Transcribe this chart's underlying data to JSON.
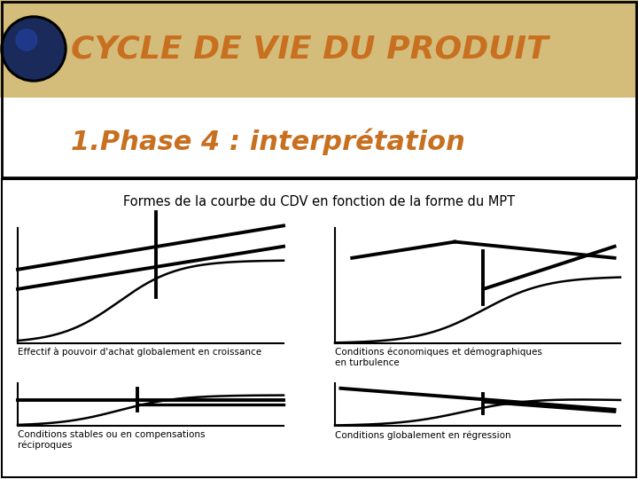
{
  "title_line1": "CYCLE DE VIE DU PRODUIT",
  "title_line2": "1.Phase 4 : interprétation",
  "subtitle": "Formes de la courbe du CDV en fonction de la forme du MPT",
  "bg_header_top": "#d4bc7a",
  "bg_header_bottom": "white",
  "text_color_title": "#c87020",
  "caption1": "Effectif à pouvoir d'achat globalement en croissance",
  "caption2": "Conditions économiques et démographiques\nen turbulence",
  "caption3": "Conditions stables ou en compensations\nréciproques",
  "caption4": "Conditions globalement en régression",
  "figsize": [
    7.2,
    5.4
  ],
  "dpi": 100
}
